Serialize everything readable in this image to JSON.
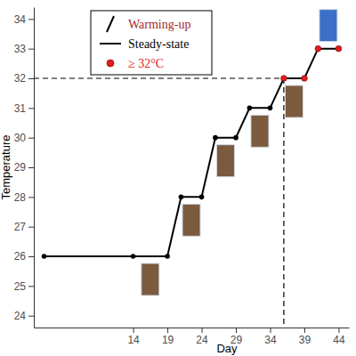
{
  "chart_data": {
    "type": "line",
    "x_label": "Day",
    "y_label": "Temperature",
    "x": [
      1,
      14,
      19,
      21,
      24,
      26,
      29,
      31,
      34,
      36,
      39,
      41,
      44
    ],
    "series": [
      {
        "name": "Steady-state",
        "color": "#000000",
        "marker": "circle",
        "line_style": "solid",
        "values": [
          26,
          26,
          26,
          28,
          28,
          30,
          30,
          31,
          31,
          32,
          32,
          33,
          33
        ],
        "colors": [
          "#000000",
          "#000000",
          "#000000",
          "#000000",
          "#000000",
          "#000000",
          "#000000",
          "#000000",
          "#000000",
          "#e41a1c",
          "#e41a1c",
          "#e41a1c",
          "#e41a1c"
        ]
      }
    ],
    "legend_entries": [
      {
        "label": "Warming-up",
        "color": "#a52a2a",
        "marker": "slash"
      },
      {
        "label": "Steady-state",
        "color": "#000000",
        "marker": "line"
      },
      {
        "label": "≥ 32°C",
        "color": "#e41a1c",
        "marker": "circle"
      }
    ],
    "threshold": {
      "x": 36,
      "y": 32,
      "line_style": "dashed"
    },
    "legend": "top-left",
    "grid": false,
    "xlim": [
      -0.5,
      45.5
    ],
    "xticks": [
      14,
      19,
      24,
      29,
      34,
      39,
      44
    ],
    "ylim": [
      23.6,
      34.4
    ],
    "yticks": [
      24,
      25,
      26,
      27,
      28,
      29,
      30,
      31,
      32,
      33,
      34
    ]
  }
}
